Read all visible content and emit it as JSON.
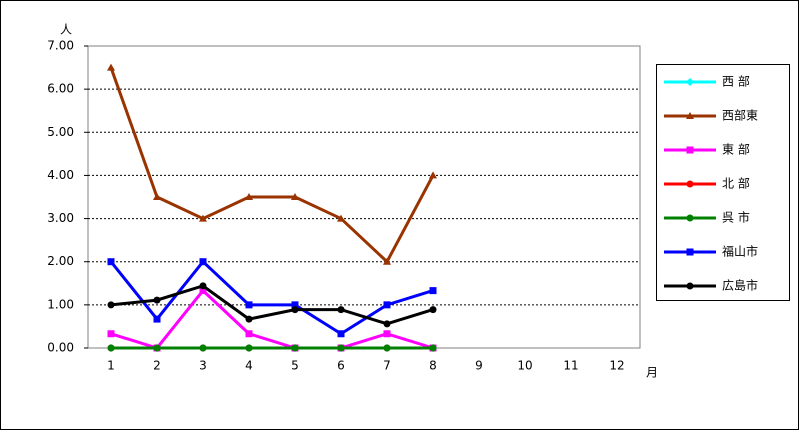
{
  "chart_data": {
    "type": "line",
    "y_label": "人",
    "x_label": "月",
    "categories": [
      "1",
      "2",
      "3",
      "4",
      "5",
      "6",
      "7",
      "8",
      "9",
      "10",
      "11",
      "12"
    ],
    "ylim": [
      0,
      7
    ],
    "yticks": [
      {
        "value": 0,
        "label": "0.00"
      },
      {
        "value": 1,
        "label": "1.00"
      },
      {
        "value": 2,
        "label": "2.00"
      },
      {
        "value": 3,
        "label": "3.00"
      },
      {
        "value": 4,
        "label": "4.00"
      },
      {
        "value": 5,
        "label": "5.00"
      },
      {
        "value": 6,
        "label": "6.00"
      },
      {
        "value": 7,
        "label": "7.00"
      }
    ],
    "grid": true,
    "legend": "right",
    "series": [
      {
        "name": "西 部",
        "color": "#00ffff",
        "marker": "diamond",
        "values": [
          0,
          0,
          0,
          0,
          0,
          0,
          0,
          0,
          null,
          null,
          null,
          null
        ]
      },
      {
        "name": "西部東",
        "color": "#993300",
        "marker": "triangle",
        "values": [
          6.5,
          3.5,
          3.0,
          3.5,
          3.5,
          3.0,
          2.0,
          4.0,
          null,
          null,
          null,
          null
        ]
      },
      {
        "name": "東 部",
        "color": "#ff00ff",
        "marker": "square",
        "values": [
          0.33,
          0,
          1.33,
          0.33,
          0,
          0,
          0.33,
          0,
          null,
          null,
          null,
          null
        ]
      },
      {
        "name": "北 部",
        "color": "#ff0000",
        "marker": "circle",
        "values": [
          0,
          0,
          0,
          0,
          0,
          0,
          0,
          0,
          null,
          null,
          null,
          null
        ]
      },
      {
        "name": "呉 市",
        "color": "#008000",
        "marker": "circle",
        "values": [
          0,
          0,
          0,
          0,
          0,
          0,
          0,
          0,
          null,
          null,
          null,
          null
        ]
      },
      {
        "name": "福山市",
        "color": "#0000ff",
        "marker": "square",
        "values": [
          2,
          0.67,
          2,
          1,
          1,
          0.33,
          1,
          1.33,
          null,
          null,
          null,
          null
        ]
      },
      {
        "name": "広島市",
        "color": "#000000",
        "marker": "circle",
        "values": [
          1,
          1.11,
          1.44,
          0.67,
          0.89,
          0.89,
          0.56,
          0.89,
          null,
          null,
          null,
          null
        ]
      }
    ]
  }
}
